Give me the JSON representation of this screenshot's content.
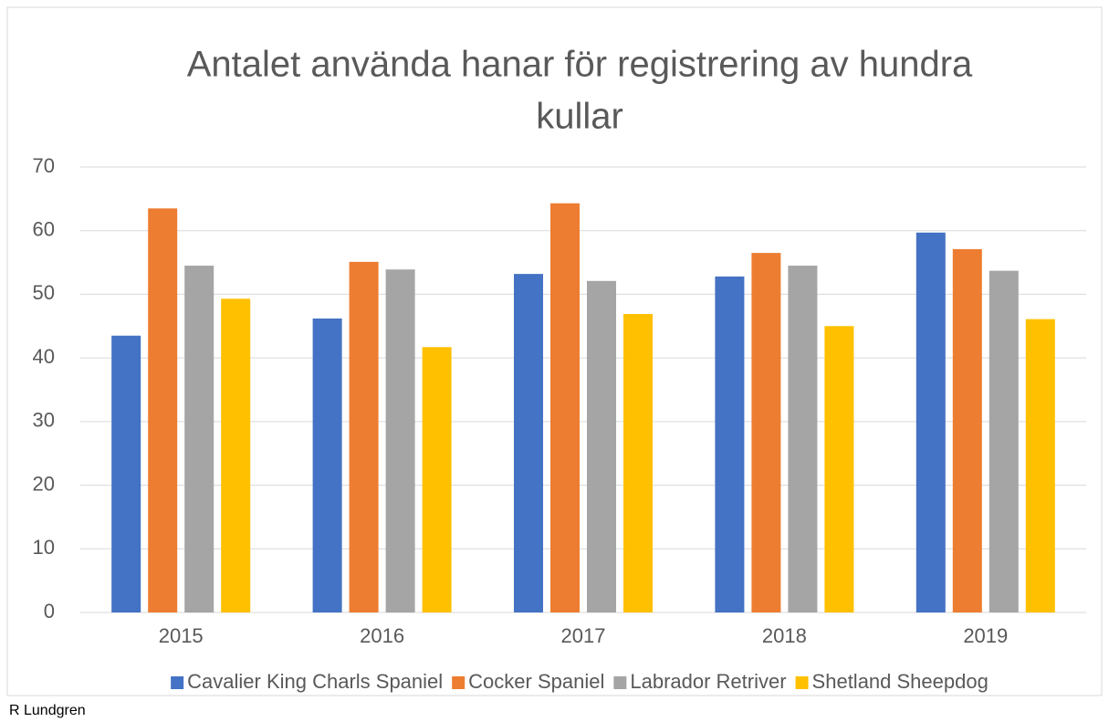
{
  "chart_data": {
    "type": "bar",
    "title": [
      "Antalet använda hanar för registrering av hundra",
      "kullar"
    ],
    "categories": [
      "2015",
      "2016",
      "2017",
      "2018",
      "2019"
    ],
    "series": [
      {
        "name": "Cavalier King Charls Spaniel",
        "color": "#4472c4",
        "values": [
          43.5,
          46.2,
          53.2,
          52.8,
          59.7
        ]
      },
      {
        "name": "Cocker Spaniel",
        "color": "#ed7d31",
        "values": [
          63.5,
          55.1,
          64.3,
          56.5,
          57.1
        ]
      },
      {
        "name": "Labrador Retriver",
        "color": "#a5a5a5",
        "values": [
          54.5,
          53.9,
          52.1,
          54.5,
          53.7
        ]
      },
      {
        "name": "Shetland Sheepdog",
        "color": "#ffc000",
        "values": [
          49.3,
          41.7,
          46.9,
          45.0,
          46.1
        ]
      }
    ],
    "ylim": [
      0,
      70
    ],
    "yticks": [
      0,
      10,
      20,
      30,
      40,
      50,
      60,
      70
    ],
    "grid": true,
    "legend": "bottom",
    "footer": "R Lundgren"
  }
}
